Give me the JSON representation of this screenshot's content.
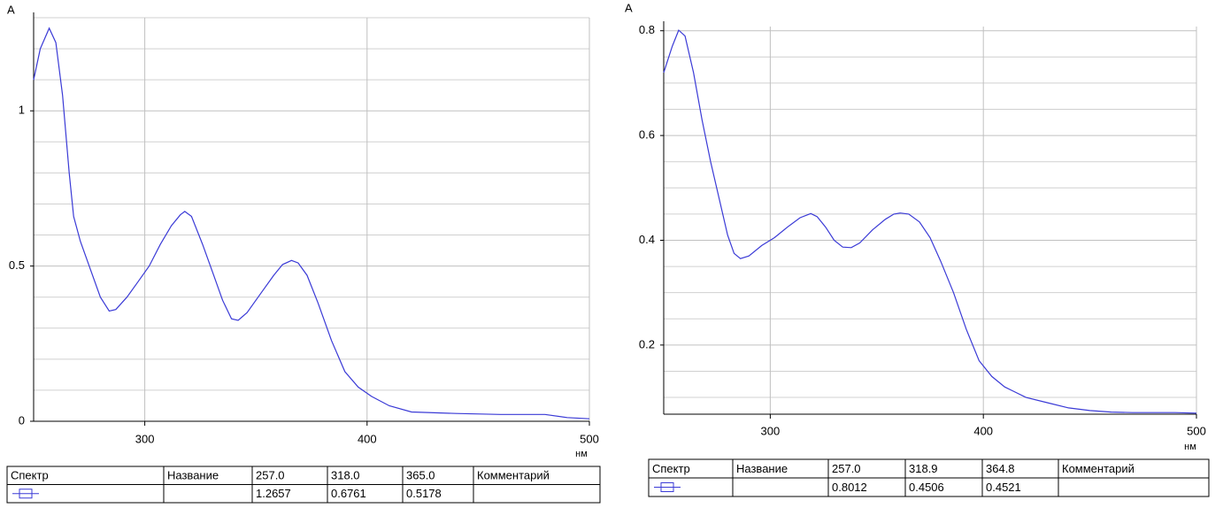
{
  "chart_data": [
    {
      "type": "line",
      "y_label": "A",
      "x_label": "нм",
      "color": "#3a3ad6",
      "x": [
        250,
        253,
        257,
        260,
        263,
        266,
        268,
        271,
        275,
        280,
        284,
        287,
        292,
        297,
        302,
        307,
        312,
        316,
        318,
        321,
        326,
        331,
        335,
        339,
        342,
        346,
        352,
        358,
        362,
        366,
        369,
        373,
        378,
        384,
        390,
        396,
        402,
        410,
        420,
        440,
        460,
        480,
        490,
        500
      ],
      "values": [
        1.1,
        1.2,
        1.266,
        1.22,
        1.05,
        0.8,
        0.66,
        0.58,
        0.5,
        0.4,
        0.355,
        0.36,
        0.4,
        0.45,
        0.5,
        0.57,
        0.63,
        0.665,
        0.676,
        0.66,
        0.57,
        0.47,
        0.39,
        0.33,
        0.325,
        0.35,
        0.41,
        0.47,
        0.505,
        0.518,
        0.51,
        0.47,
        0.38,
        0.26,
        0.16,
        0.11,
        0.08,
        0.05,
        0.03,
        0.025,
        0.022,
        0.022,
        0.012,
        0.008
      ],
      "xlim": [
        250,
        500
      ],
      "xticks": [
        300,
        400,
        500
      ],
      "ylim": [
        0,
        1.3
      ],
      "yticks": [
        0,
        0.5,
        1
      ],
      "yminor": [
        0.1,
        0.2,
        0.3,
        0.4,
        0.6,
        0.7,
        0.8,
        0.9,
        1.1,
        1.2,
        1.3
      ],
      "grid": true,
      "table": {
        "header": [
          "Спектр",
          "Название",
          "257.0",
          "318.0",
          "365.0",
          "Комментарий"
        ],
        "values": [
          "1.2657",
          "0.6761",
          "0.5178"
        ]
      }
    },
    {
      "type": "line",
      "y_label": "A",
      "x_label": "нм",
      "color": "#3a3ad6",
      "x": [
        250,
        254,
        257,
        260,
        264,
        268,
        272,
        276,
        280,
        283,
        286,
        290,
        296,
        302,
        308,
        314,
        319,
        322,
        326,
        330,
        334,
        338,
        342,
        348,
        354,
        358,
        361,
        365,
        370,
        375,
        380,
        386,
        392,
        398,
        404,
        410,
        420,
        430,
        440,
        450,
        460,
        470,
        490,
        500
      ],
      "values": [
        0.72,
        0.77,
        0.801,
        0.79,
        0.72,
        0.63,
        0.55,
        0.48,
        0.41,
        0.375,
        0.365,
        0.37,
        0.39,
        0.405,
        0.425,
        0.443,
        0.451,
        0.445,
        0.425,
        0.4,
        0.387,
        0.386,
        0.395,
        0.42,
        0.44,
        0.45,
        0.452,
        0.45,
        0.435,
        0.405,
        0.36,
        0.3,
        0.23,
        0.17,
        0.14,
        0.12,
        0.1,
        0.09,
        0.08,
        0.075,
        0.072,
        0.071,
        0.071,
        0.07
      ],
      "xlim": [
        250,
        500
      ],
      "xticks": [
        300,
        400,
        500
      ],
      "ylim": [
        0.068,
        0.808
      ],
      "yticks": [
        0.2,
        0.4,
        0.6,
        0.8
      ],
      "yminor": [
        0.1,
        0.15,
        0.25,
        0.3,
        0.35,
        0.45,
        0.5,
        0.55,
        0.65,
        0.7,
        0.75
      ],
      "grid": true,
      "table": {
        "header": [
          "Спектр",
          "Название",
          "257.0",
          "318.9",
          "364.8",
          "Комментарий"
        ],
        "values": [
          "0.8012",
          "0.4506",
          "0.4521"
        ]
      }
    }
  ]
}
